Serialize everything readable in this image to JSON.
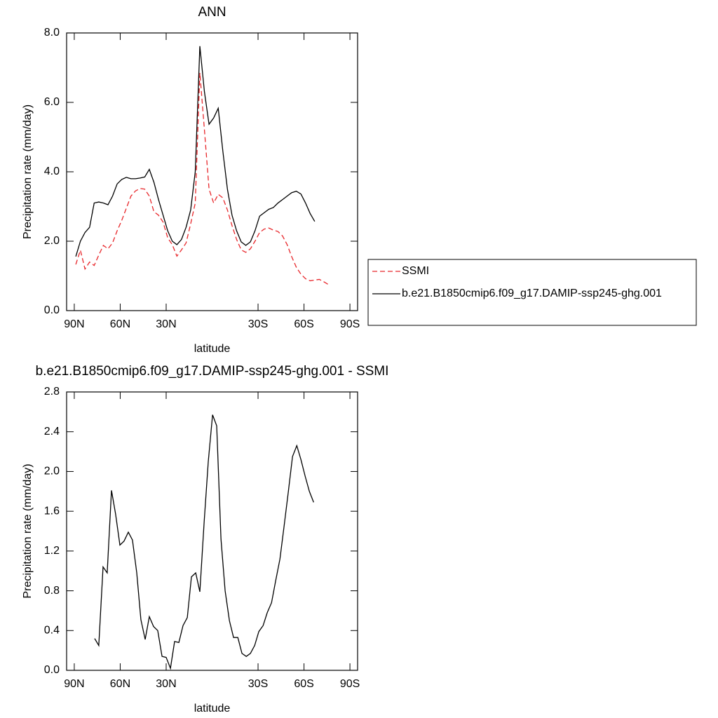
{
  "chart_data": [
    {
      "type": "line",
      "title": "ANN",
      "x_label": "latitude",
      "y_label": "Precipitation rate (mm/day)",
      "x": [
        89,
        86,
        83,
        80,
        77,
        74,
        71,
        68,
        65,
        62,
        59,
        56,
        53,
        50,
        47,
        44,
        41,
        38,
        35,
        32,
        29,
        26,
        23,
        20,
        17,
        14,
        11,
        8,
        5,
        2,
        -1,
        -4,
        -7,
        -10,
        -13,
        -16,
        -19,
        -22,
        -25,
        -28,
        -31,
        -34,
        -37,
        -40,
        -43,
        -46,
        -49,
        -52,
        -55,
        -58,
        -61,
        -64,
        -67,
        -70,
        -73,
        -76
      ],
      "series": [
        {
          "name": "SSMI",
          "color": "#e8262a",
          "dashed": true,
          "values": [
            1.33,
            1.74,
            1.2,
            1.4,
            1.3,
            1.6,
            1.88,
            1.78,
            1.95,
            2.3,
            2.6,
            2.95,
            3.3,
            3.45,
            3.52,
            3.5,
            3.3,
            2.85,
            2.75,
            2.55,
            2.1,
            1.9,
            1.57,
            1.75,
            1.95,
            2.5,
            3.1,
            6.85,
            5.2,
            3.5,
            3.1,
            3.35,
            3.25,
            2.9,
            2.45,
            2.05,
            1.75,
            1.68,
            1.78,
            2.0,
            2.25,
            2.35,
            2.38,
            2.32,
            2.28,
            2.15,
            1.9,
            1.55,
            1.25,
            1.05,
            0.92,
            0.86,
            0.88,
            0.9,
            0.83,
            0.75
          ]
        },
        {
          "name": "b.e21.B1850cmip6.f09_g17.DAMIP-ssp245-ghg.001",
          "color": "#000000",
          "dashed": false,
          "values": [
            1.56,
            2.0,
            2.25,
            2.4,
            3.1,
            3.13,
            3.1,
            3.05,
            3.3,
            3.65,
            3.78,
            3.84,
            3.8,
            3.8,
            3.82,
            3.85,
            4.07,
            3.7,
            3.2,
            2.75,
            2.3,
            2.0,
            1.9,
            2.05,
            2.4,
            2.9,
            4.0,
            7.62,
            6.3,
            5.37,
            5.55,
            5.83,
            4.6,
            3.5,
            2.75,
            2.3,
            1.98,
            1.88,
            1.98,
            2.3,
            2.72,
            2.82,
            2.92,
            2.97,
            3.1,
            3.2,
            3.3,
            3.4,
            3.44,
            3.36,
            3.1,
            2.8,
            2.57,
            null,
            null,
            null
          ]
        }
      ],
      "xlim": [
        95,
        -95
      ],
      "xticks": [
        {
          "value": 90,
          "label": "90N"
        },
        {
          "value": 60,
          "label": "60N"
        },
        {
          "value": 30,
          "label": "30N"
        },
        {
          "value": -30,
          "label": "30S"
        },
        {
          "value": -60,
          "label": "60S"
        },
        {
          "value": -90,
          "label": "90S"
        }
      ],
      "ylim": [
        0,
        8
      ],
      "yticks": [
        {
          "value": 0,
          "label": "0.0"
        },
        {
          "value": 2,
          "label": "2.0"
        },
        {
          "value": 4,
          "label": "4.0"
        },
        {
          "value": 6,
          "label": "6.0"
        },
        {
          "value": 8,
          "label": "8.0"
        }
      ],
      "legend": "right",
      "grid": false
    },
    {
      "type": "line",
      "title": "b.e21.B1850cmip6.f09_g17.DAMIP-ssp245-ghg.001 - SSMI",
      "x_label": "latitude",
      "y_label": "Precipitation rate (mm/day)",
      "x": [
        76.7,
        74.0,
        71.2,
        68.5,
        65.7,
        63.0,
        60.2,
        57.5,
        54.7,
        52.0,
        49.2,
        46.5,
        43.7,
        41.0,
        38.2,
        35.5,
        32.7,
        30.0,
        27.2,
        24.5,
        21.7,
        19.0,
        16.2,
        13.5,
        10.7,
        8.0,
        5.2,
        2.5,
        -0.3,
        -3.0,
        -5.8,
        -8.5,
        -11.3,
        -14.0,
        -16.8,
        -19.5,
        -22.3,
        -25.0,
        -27.8,
        -30.5,
        -33.3,
        -36.0,
        -38.8,
        -41.5,
        -44.3,
        -47.0,
        -49.8,
        -52.5,
        -55.3,
        -58.0,
        -60.8,
        -63.5,
        -66.3
      ],
      "values": [
        0.32,
        0.25,
        1.04,
        0.98,
        1.81,
        1.57,
        1.26,
        1.3,
        1.39,
        1.31,
        0.98,
        0.51,
        0.31,
        0.54,
        0.44,
        0.4,
        0.14,
        0.13,
        0.02,
        0.29,
        0.28,
        0.45,
        0.53,
        0.94,
        0.98,
        0.79,
        1.49,
        2.1,
        2.57,
        2.46,
        1.32,
        0.8,
        0.5,
        0.33,
        0.33,
        0.17,
        0.14,
        0.17,
        0.25,
        0.39,
        0.45,
        0.58,
        0.68,
        0.9,
        1.12,
        1.45,
        1.8,
        2.15,
        2.26,
        2.12,
        1.95,
        1.8,
        1.69
      ],
      "color": "#000000",
      "xlim": [
        95,
        -95
      ],
      "xticks": [
        {
          "value": 90,
          "label": "90N"
        },
        {
          "value": 60,
          "label": "60N"
        },
        {
          "value": 30,
          "label": "30N"
        },
        {
          "value": -30,
          "label": "30S"
        },
        {
          "value": -60,
          "label": "60S"
        },
        {
          "value": -90,
          "label": "90S"
        }
      ],
      "ylim": [
        0,
        2.8
      ],
      "yticks": [
        {
          "value": 0,
          "label": "0.0"
        },
        0.4,
        0.8,
        1.2,
        1.6,
        {
          "value": 2,
          "label": "2.0"
        },
        2.4,
        2.8
      ],
      "grid": false
    }
  ]
}
